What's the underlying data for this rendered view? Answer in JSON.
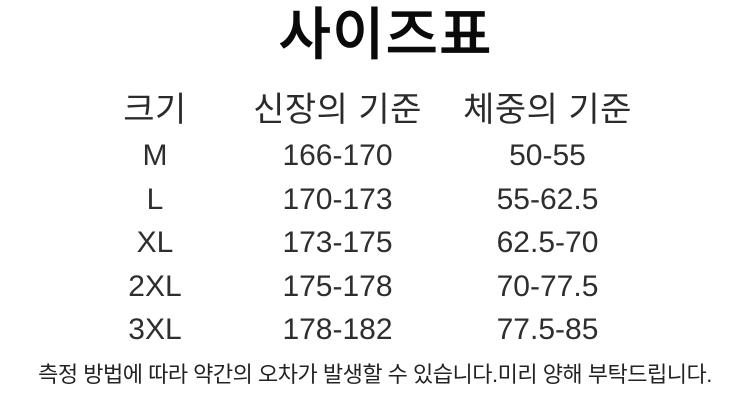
{
  "page": {
    "background_color": "#ffffff",
    "title_color": "#0a0a0a",
    "text_color": "#2e2e2e"
  },
  "title": "사이즈표",
  "table": {
    "columns": {
      "size": "크기",
      "height": "신장의 기준",
      "weight": "체중의 기준"
    },
    "rows": [
      {
        "size": "M",
        "height": "166-170",
        "weight": "50-55"
      },
      {
        "size": "L",
        "height": "170-173",
        "weight": "55-62.5"
      },
      {
        "size": "XL",
        "height": "173-175",
        "weight": "62.5-70"
      },
      {
        "size": "2XL",
        "height": "175-178",
        "weight": "70-77.5"
      },
      {
        "size": "3XL",
        "height": "178-182",
        "weight": "77.5-85"
      }
    ]
  },
  "footer_note": "측정 방법에 따라 약간의 오차가 발생할 수 있습니다.미리 양해 부탁드립니다."
}
